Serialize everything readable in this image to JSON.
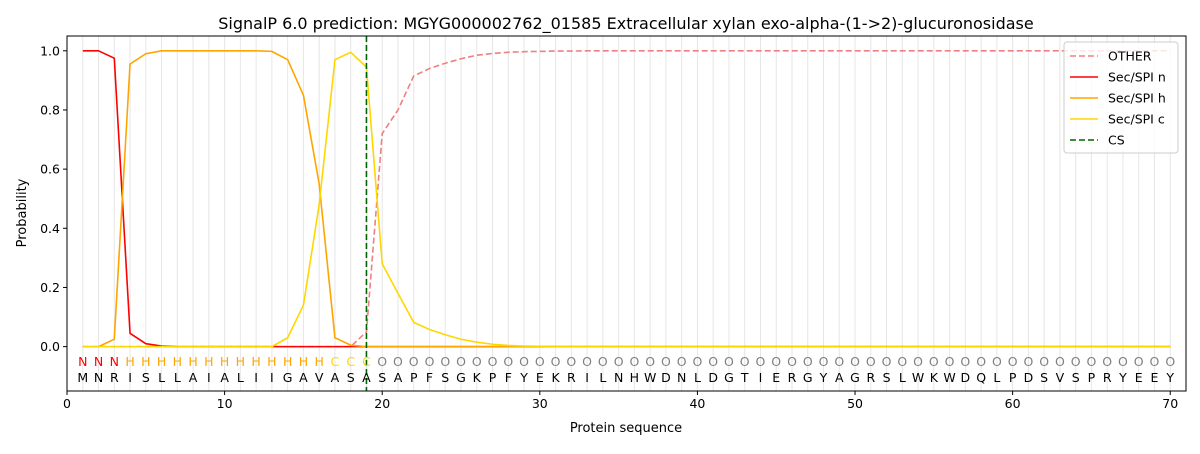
{
  "chart_data": {
    "type": "line",
    "title": "SignalP 6.0 prediction: MGYG000002762_01585 Extracellular xylan exo-alpha-(1->2)-glucuronosidase",
    "xlabel": "Protein sequence",
    "ylabel": "Probability",
    "xlim": [
      0,
      71
    ],
    "ylim": [
      -0.15,
      1.05
    ],
    "xticks": [
      0,
      10,
      20,
      30,
      40,
      50,
      60,
      70
    ],
    "yticks": [
      0.0,
      0.2,
      0.4,
      0.6,
      0.8,
      1.0
    ],
    "x_tick_labels": [
      "0",
      "10",
      "20",
      "30",
      "40",
      "50",
      "60",
      "70"
    ],
    "y_tick_labels": [
      "0.0",
      "0.2",
      "0.4",
      "0.6",
      "0.8",
      "1.0"
    ],
    "legend_position": "top-right",
    "cleavage_site": 19,
    "sequence": "MNRISLLAIALIIGAVASASAPFSGKPFYEKRILNHWDNLDGTIERGYAGRSLWKWDQLPDSVSPRYEEY",
    "labels": "NNNHHHHHHHHHHHHHCCCOOOOOOOOOOOOOOOOOOOOOOOOOOOOOOOOOOOOOOOOOOOOOOOOOOO",
    "label_colors": {
      "N": "#ff0000",
      "H": "#ffa500",
      "C": "#ffd700",
      "O": "#808080"
    },
    "series": [
      {
        "name": "OTHER",
        "color": "#f08080",
        "style": "dashed",
        "values": [
          0.0,
          0.0,
          0.0,
          0.0,
          0.0,
          0.0,
          0.0,
          0.0,
          0.0,
          0.0,
          0.0,
          0.0,
          0.0,
          0.0,
          0.0,
          0.0,
          0.0,
          0.0,
          0.05,
          0.72,
          0.8,
          0.915,
          0.94,
          0.958,
          0.973,
          0.985,
          0.991,
          0.995,
          0.997,
          0.998,
          0.999,
          0.999,
          1.0,
          1.0,
          1.0,
          1.0,
          1.0,
          1.0,
          1.0,
          1.0,
          1.0,
          1.0,
          1.0,
          1.0,
          1.0,
          1.0,
          1.0,
          1.0,
          1.0,
          1.0,
          1.0,
          1.0,
          1.0,
          1.0,
          1.0,
          1.0,
          1.0,
          1.0,
          1.0,
          1.0,
          1.0,
          1.0,
          1.0,
          1.0,
          1.0,
          1.0,
          1.0,
          1.0,
          1.0,
          1.0
        ]
      },
      {
        "name": "Sec/SPI n",
        "color": "#ff0000",
        "style": "solid",
        "values": [
          1.0,
          1.0,
          0.975,
          0.045,
          0.01,
          0.002,
          0.0,
          0.0,
          0.0,
          0.0,
          0.0,
          0.0,
          0.0,
          0.0,
          0.0,
          0.0,
          0.0,
          0.0,
          0.0,
          0.0,
          0.0,
          0.0,
          0.0,
          0.0,
          0.0,
          0.0,
          0.0,
          0.0,
          0.0,
          0.0,
          0.0,
          0.0,
          0.0,
          0.0,
          0.0,
          0.0,
          0.0,
          0.0,
          0.0,
          0.0,
          0.0,
          0.0,
          0.0,
          0.0,
          0.0,
          0.0,
          0.0,
          0.0,
          0.0,
          0.0,
          0.0,
          0.0,
          0.0,
          0.0,
          0.0,
          0.0,
          0.0,
          0.0,
          0.0,
          0.0,
          0.0,
          0.0,
          0.0,
          0.0,
          0.0,
          0.0,
          0.0,
          0.0,
          0.0,
          0.0
        ]
      },
      {
        "name": "Sec/SPI h",
        "color": "#ffa500",
        "style": "solid",
        "values": [
          0.0,
          0.0,
          0.025,
          0.955,
          0.99,
          1.0,
          1.0,
          1.0,
          1.0,
          1.0,
          1.0,
          1.0,
          0.998,
          0.97,
          0.85,
          0.55,
          0.03,
          0.005,
          0.0,
          0.0,
          0.0,
          0.0,
          0.0,
          0.0,
          0.0,
          0.0,
          0.0,
          0.0,
          0.0,
          0.0,
          0.0,
          0.0,
          0.0,
          0.0,
          0.0,
          0.0,
          0.0,
          0.0,
          0.0,
          0.0,
          0.0,
          0.0,
          0.0,
          0.0,
          0.0,
          0.0,
          0.0,
          0.0,
          0.0,
          0.0,
          0.0,
          0.0,
          0.0,
          0.0,
          0.0,
          0.0,
          0.0,
          0.0,
          0.0,
          0.0,
          0.0,
          0.0,
          0.0,
          0.0,
          0.0,
          0.0,
          0.0,
          0.0,
          0.0,
          0.0
        ]
      },
      {
        "name": "Sec/SPI c",
        "color": "#ffd700",
        "style": "solid",
        "values": [
          0.0,
          0.0,
          0.0,
          0.0,
          0.0,
          0.0,
          0.0,
          0.0,
          0.0,
          0.0,
          0.0,
          0.0,
          0.0,
          0.03,
          0.14,
          0.48,
          0.97,
          0.995,
          0.945,
          0.28,
          0.18,
          0.082,
          0.058,
          0.04,
          0.025,
          0.015,
          0.008,
          0.004,
          0.002,
          0.001,
          0.0,
          0.0,
          0.0,
          0.0,
          0.0,
          0.0,
          0.0,
          0.0,
          0.0,
          0.0,
          0.0,
          0.0,
          0.0,
          0.0,
          0.0,
          0.0,
          0.0,
          0.0,
          0.0,
          0.0,
          0.0,
          0.0,
          0.0,
          0.0,
          0.0,
          0.0,
          0.0,
          0.0,
          0.0,
          0.0,
          0.0,
          0.0,
          0.0,
          0.0,
          0.0,
          0.0,
          0.0,
          0.0,
          0.0,
          0.0
        ]
      },
      {
        "name": "CS",
        "color": "#006400",
        "style": "dashed",
        "values": []
      }
    ]
  }
}
